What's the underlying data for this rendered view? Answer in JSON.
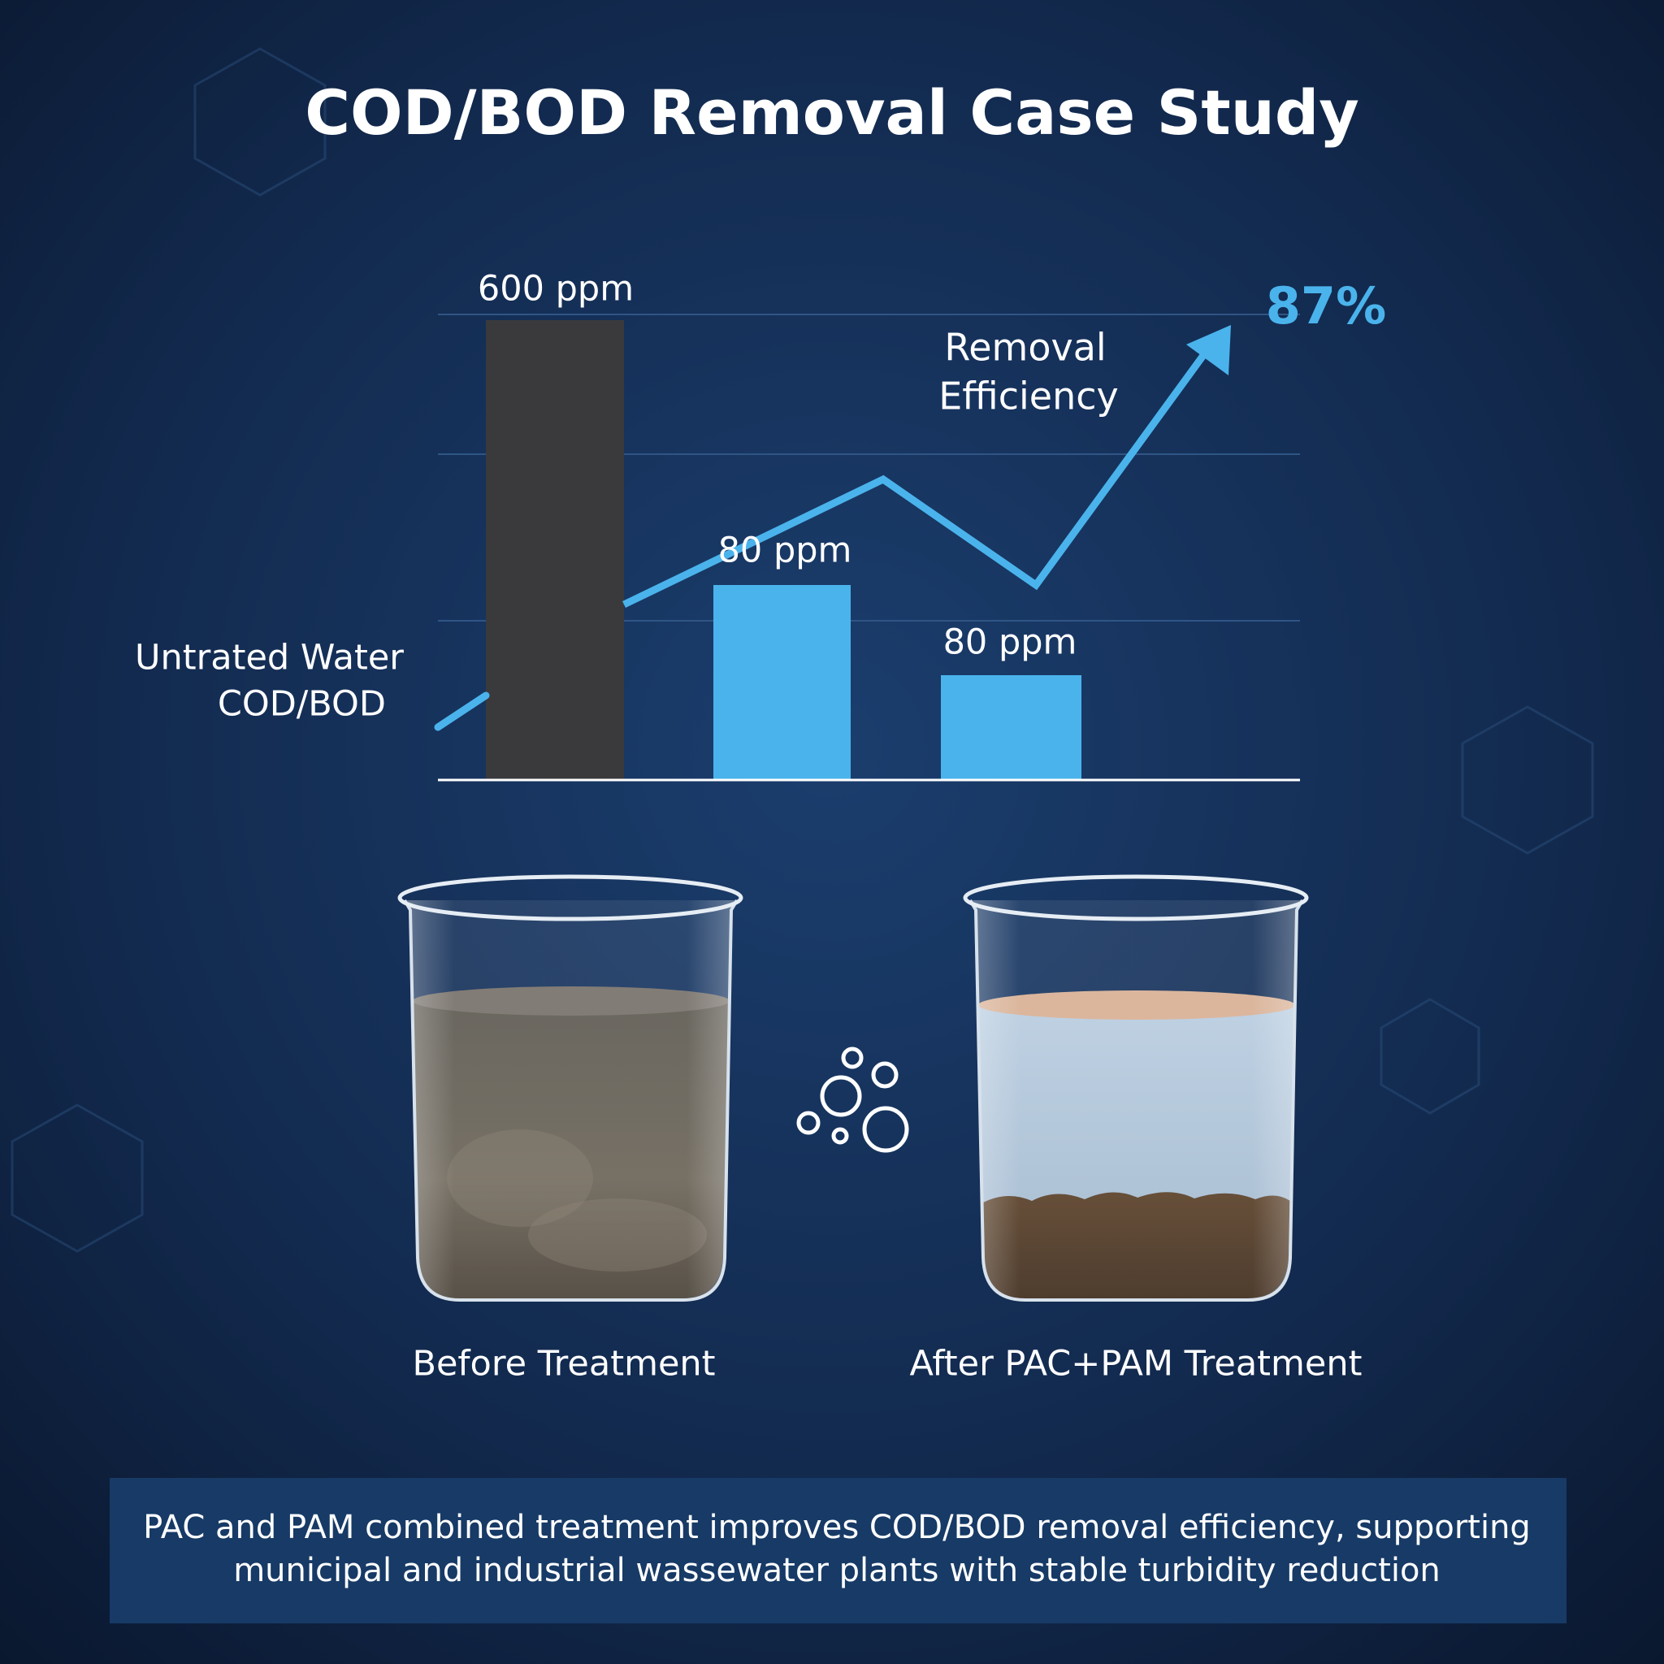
{
  "title": "COD/BOD Removal Case Study",
  "chart": {
    "bar_labels": [
      "600 ppm",
      "80 ppm",
      "80 ppm"
    ],
    "efficiency_value": "87%",
    "efficiency_label": [
      "Removal",
      "Efficiency"
    ],
    "baseline_label": [
      "Untrated Water",
      "COD/BOD"
    ]
  },
  "beakers": [
    {
      "label": "Before Treatment"
    },
    {
      "label": "After PAC+PAM Treatment"
    }
  ],
  "footer": {
    "lines": [
      "PAC and PAM combined treatment improves COD/BOD removal efficiency, supporting",
      "municipal and industrial wassewater plants with stable turbidity reduction"
    ]
  }
}
